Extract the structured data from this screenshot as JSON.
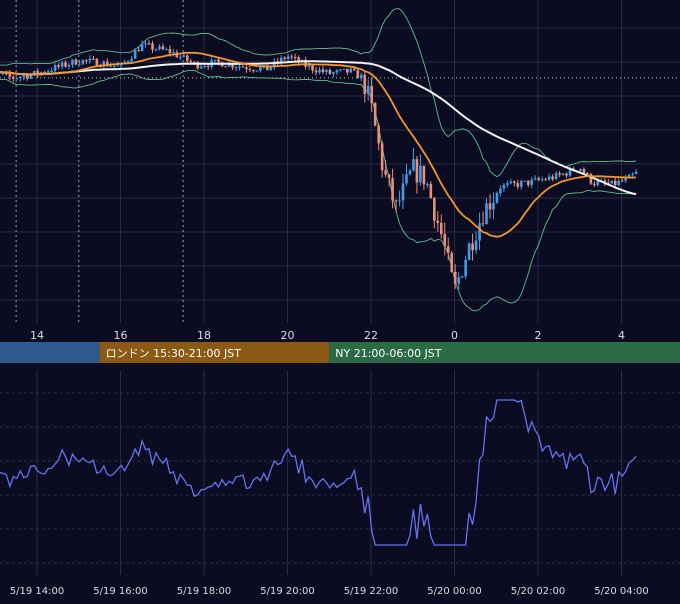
{
  "chart_data": {
    "type": "candlestick",
    "colors": {
      "background": "#0b0b22",
      "grid": "#2a2d45",
      "up_candle": "#3f9ce8",
      "down_candle": "#e8907a",
      "ma_fast": "#f0962a",
      "ma_slow": "#f2f2f2",
      "bollinger": "#5fbf88",
      "oscillator": "#6673ee",
      "tokyo_session": "#2c5a8c",
      "london_session": "#8a5a15",
      "ny_session": "#2a6a45",
      "axis_text": "#dddddd"
    },
    "price_axis_hours": [
      "14",
      "16",
      "18",
      "20",
      "22",
      "0",
      "2",
      "4"
    ],
    "time_axis_labels": [
      "5/19 14:00",
      "5/19 16:00",
      "5/19 18:00",
      "5/19 20:00",
      "5/19 22:00",
      "5/20 00:00",
      "5/20 02:00",
      "5/20 04:00"
    ],
    "sessions": [
      {
        "label": "",
        "color": "#2c5a8c",
        "start_h": 12.0,
        "end_h": 15.5
      },
      {
        "label": "ロンドン 15:30-21:00 JST",
        "color": "#8a5a15",
        "start_h": 15.5,
        "end_h": 21.0
      },
      {
        "label": "NY 21:00-06:00 JST",
        "color": "#2a6a45",
        "start_h": 21.0,
        "end_h": 30.0
      }
    ],
    "session_vlines_h": [
      12.7,
      13.5,
      15.0,
      17.5
    ],
    "current_price_line": 0.8,
    "x_range_hours": [
      12.6,
      28.4
    ],
    "y_range": [
      -10,
      3
    ],
    "osc_range": [
      -3,
      3
    ],
    "anchor_points": [
      [
        12.6,
        1.2
      ],
      [
        13.4,
        0.8
      ],
      [
        14.0,
        1.0
      ],
      [
        15.0,
        1.6
      ],
      [
        15.5,
        1.5
      ],
      [
        16.0,
        1.3
      ],
      [
        16.5,
        2.3
      ],
      [
        17.2,
        2.0
      ],
      [
        17.8,
        1.4
      ],
      [
        18.4,
        1.5
      ],
      [
        19.0,
        1.3
      ],
      [
        19.5,
        1.2
      ],
      [
        20.0,
        1.8
      ],
      [
        20.5,
        1.3
      ],
      [
        21.0,
        1.0
      ],
      [
        21.5,
        1.1
      ],
      [
        21.8,
        0.8
      ],
      [
        22.0,
        -0.5
      ],
      [
        22.3,
        -3.5
      ],
      [
        22.6,
        -5.2
      ],
      [
        23.0,
        -3.4
      ],
      [
        23.3,
        -3.8
      ],
      [
        23.7,
        -6.5
      ],
      [
        24.0,
        -9.0
      ],
      [
        24.3,
        -7.2
      ],
      [
        24.7,
        -5.3
      ],
      [
        25.1,
        -4.2
      ],
      [
        25.8,
        -4.0
      ],
      [
        26.5,
        -3.7
      ],
      [
        27.0,
        -3.3
      ],
      [
        27.3,
        -4.0
      ],
      [
        27.8,
        -4.1
      ],
      [
        28.2,
        -3.8
      ],
      [
        28.4,
        -3.5
      ]
    ]
  }
}
